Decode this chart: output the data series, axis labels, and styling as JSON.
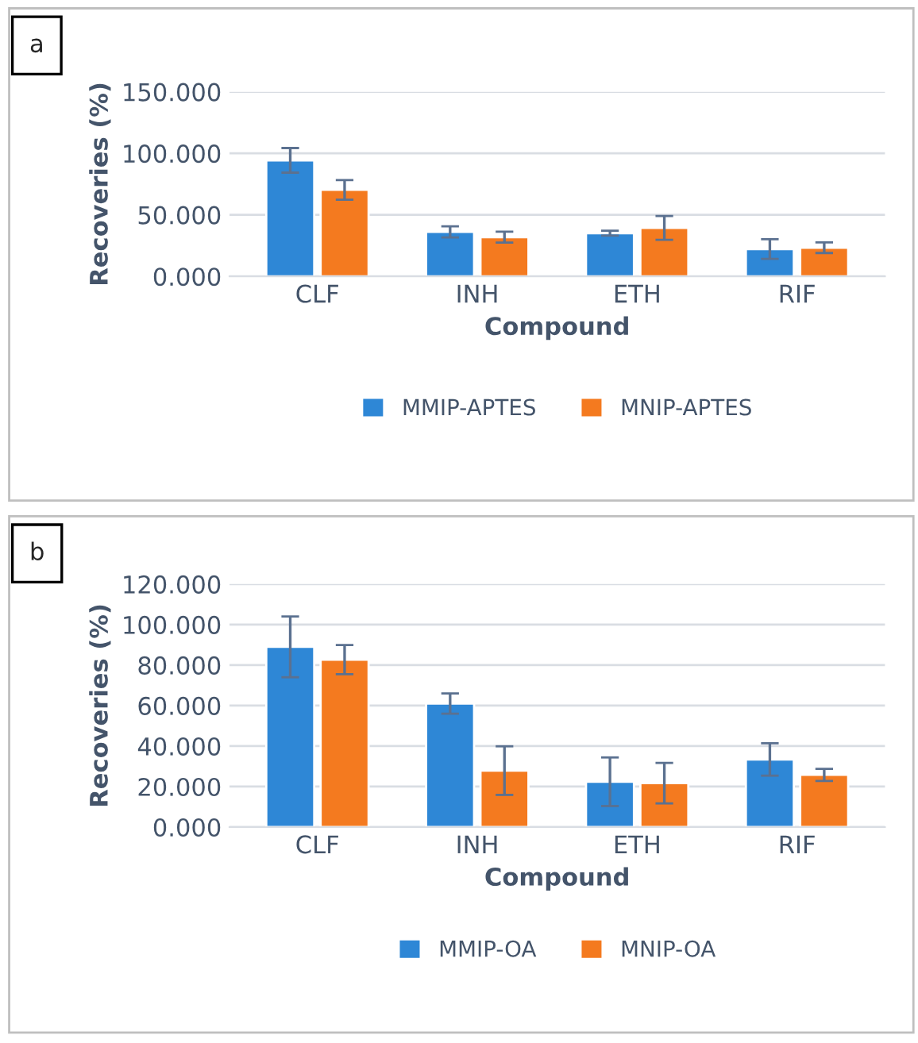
{
  "chart_data": [
    {
      "type": "bar",
      "categories": [
        "CLF",
        "INH",
        "ETH",
        "RIF"
      ],
      "xlabel": "Compound",
      "ylabel": "Recoveries (%)",
      "annotations": [
        "a"
      ],
      "series": [
        {
          "name": "MMIP-APTES",
          "color": "#2e87d6",
          "values": [
            94.3,
            36.2,
            35.1,
            22.2
          ],
          "errors": [
            10,
            4.5,
            2,
            8
          ]
        },
        {
          "name": "MNIP-APTES",
          "color": "#f47a1f",
          "values": [
            70.3,
            31.9,
            39.4,
            23.3
          ],
          "errors": [
            8,
            4.5,
            9.7,
            4.3
          ]
        }
      ],
      "ylim": [
        0,
        150
      ],
      "yticks": [
        {
          "value": 0,
          "label": "0.000"
        },
        {
          "value": 50,
          "label": "50.000"
        },
        {
          "value": 100,
          "label": "100.000"
        },
        {
          "value": 150,
          "label": "150.000"
        }
      ],
      "grid": "y",
      "legend": "bottom"
    },
    {
      "type": "bar",
      "categories": [
        "CLF",
        "INH",
        "ETH",
        "RIF"
      ],
      "xlabel": "Compound",
      "ylabel": "Recoveries (%)",
      "annotations": [
        "b"
      ],
      "series": [
        {
          "name": "MMIP-OA",
          "color": "#2e87d6",
          "values": [
            89.0,
            61.0,
            22.4,
            33.4
          ],
          "errors": [
            15,
            5,
            12,
            8
          ]
        },
        {
          "name": "MNIP-OA",
          "color": "#f47a1f",
          "values": [
            82.7,
            27.9,
            21.7,
            25.8
          ],
          "errors": [
            7.2,
            12,
            10,
            3
          ]
        }
      ],
      "ylim": [
        0,
        120
      ],
      "yticks": [
        {
          "value": 0,
          "label": "0.000"
        },
        {
          "value": 20,
          "label": "20.000"
        },
        {
          "value": 40,
          "label": "40.000"
        },
        {
          "value": 60,
          "label": "60.000"
        },
        {
          "value": 80,
          "label": "80.000"
        },
        {
          "value": 100,
          "label": "100.000"
        },
        {
          "value": 120,
          "label": "120.000"
        }
      ],
      "grid": "y",
      "legend": "bottom"
    }
  ]
}
